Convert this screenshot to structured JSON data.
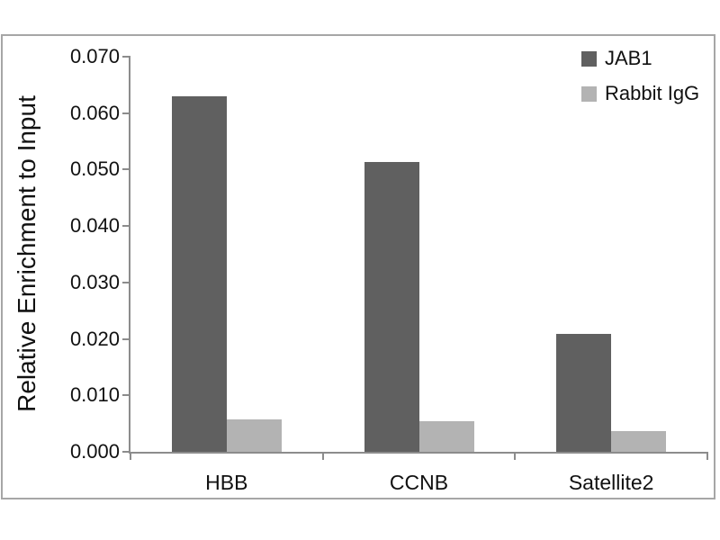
{
  "chart_data": {
    "type": "bar",
    "title": "",
    "ylabel": "Relative Enrichment to Input",
    "xlabel": "",
    "categories": [
      "HBB",
      "CCNB",
      "Satellite2"
    ],
    "series": [
      {
        "name": "JAB1",
        "color": "#606060",
        "values": [
          0.063,
          0.0513,
          0.0209
        ]
      },
      {
        "name": "Rabbit IgG",
        "color": "#b3b3b3",
        "values": [
          0.0058,
          0.0054,
          0.0037
        ]
      }
    ],
    "ylim": [
      0,
      0.07
    ],
    "ytick_step": 0.01,
    "ytick_labels": [
      "0.000",
      "0.010",
      "0.020",
      "0.030",
      "0.040",
      "0.050",
      "0.060",
      "0.070"
    ],
    "grid": false,
    "legend_position": "top-right",
    "axis_color": "#8c8c8c",
    "frame_color": "#a6a6a6",
    "text_color": "#111111",
    "background_color": "#ffffff"
  }
}
